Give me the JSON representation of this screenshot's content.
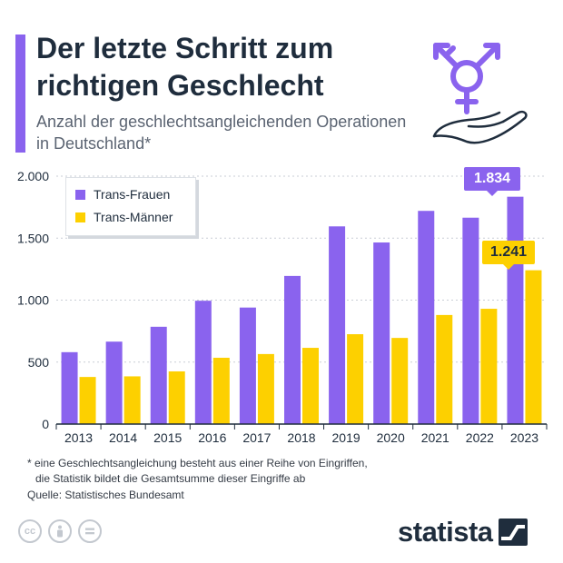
{
  "header": {
    "title": "Der letzte Schritt zum richtigen Geschlecht",
    "subtitle": "Anzahl der geschlechtsangleichenden Operationen in Deutschland*"
  },
  "legend": {
    "items": [
      {
        "label": "Trans-Frauen",
        "color": "#8a63ee"
      },
      {
        "label": "Trans-Männer",
        "color": "#fdd000"
      }
    ]
  },
  "callouts": {
    "frauen_2023": "1.834",
    "maenner_2023": "1.241"
  },
  "footer": {
    "footnote_line1": "* eine Geschlechtsangleichung besteht aus einer Reihe von Eingriffen,",
    "footnote_line2": "die Statistik bildet die Gesamtsumme dieser Eingriffe ab",
    "source": "Quelle: Statistisches Bundesamt",
    "brand": "statista"
  },
  "icons": [
    "transgender-symbol-icon",
    "open-hand-icon",
    "cc-icon",
    "attribution-icon",
    "no-derivatives-icon",
    "statista-logo-icon"
  ],
  "chart_data": {
    "type": "bar",
    "categories": [
      "2013",
      "2014",
      "2015",
      "2016",
      "2017",
      "2018",
      "2019",
      "2020",
      "2021",
      "2022",
      "2023"
    ],
    "series": [
      {
        "name": "Trans-Frauen",
        "color": "#8a63ee",
        "values": [
          580,
          665,
          785,
          995,
          940,
          1195,
          1595,
          1465,
          1720,
          1665,
          1834
        ]
      },
      {
        "name": "Trans-Männer",
        "color": "#fdd000",
        "values": [
          380,
          385,
          425,
          535,
          565,
          615,
          725,
          695,
          880,
          930,
          1241
        ]
      }
    ],
    "yticks": [
      0,
      500,
      1000,
      1500,
      2000
    ],
    "ytick_labels": [
      "0",
      "500",
      "1.000",
      "1.500",
      "2.000"
    ],
    "ylim": [
      0,
      2000
    ],
    "grid": true,
    "legend_position": "top-left"
  }
}
